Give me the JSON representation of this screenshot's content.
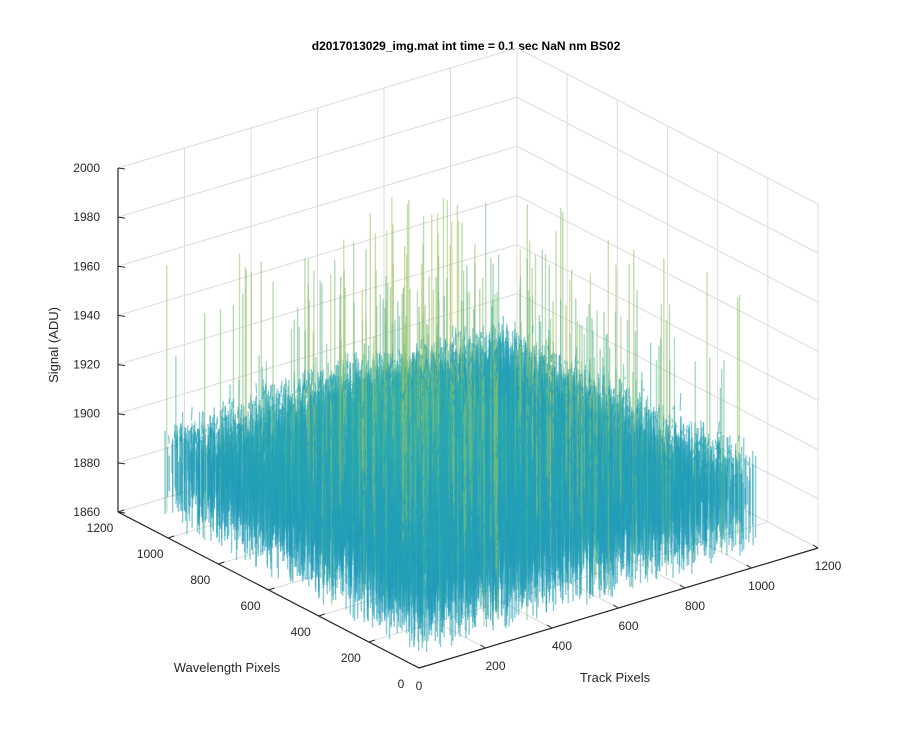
{
  "chart_data": {
    "type": "surface",
    "title": "d2017013029_img.mat int time = 0.1 sec  NaN nm BS02",
    "xlabel": "Track Pixels",
    "ylabel": "Wavelength Pixels",
    "zlabel": "Signal (ADU)",
    "xlim": [
      0,
      1200
    ],
    "ylim": [
      0,
      1200
    ],
    "zlim": [
      1860,
      2000
    ],
    "x_ticks": [
      "0",
      "200",
      "400",
      "600",
      "800",
      "1000",
      "1200"
    ],
    "y_ticks": [
      "0",
      "200",
      "400",
      "600",
      "800",
      "1000",
      "1200"
    ],
    "z_ticks": [
      "1860",
      "1880",
      "1900",
      "1920",
      "1940",
      "1960",
      "1980",
      "2000"
    ],
    "surface": {
      "x_extent": [
        0,
        1024
      ],
      "y_extent": [
        0,
        1024
      ],
      "mean_signal": 1900,
      "signal_range": [
        1855,
        1990
      ],
      "colormap": "parula"
    },
    "grid": true
  },
  "colors": {
    "axis": "#262626",
    "grid": "#dcdcdc",
    "surface_low": "#0a72d8",
    "surface_mid": "#2fb3a8",
    "surface_high": "#c8c84a"
  }
}
